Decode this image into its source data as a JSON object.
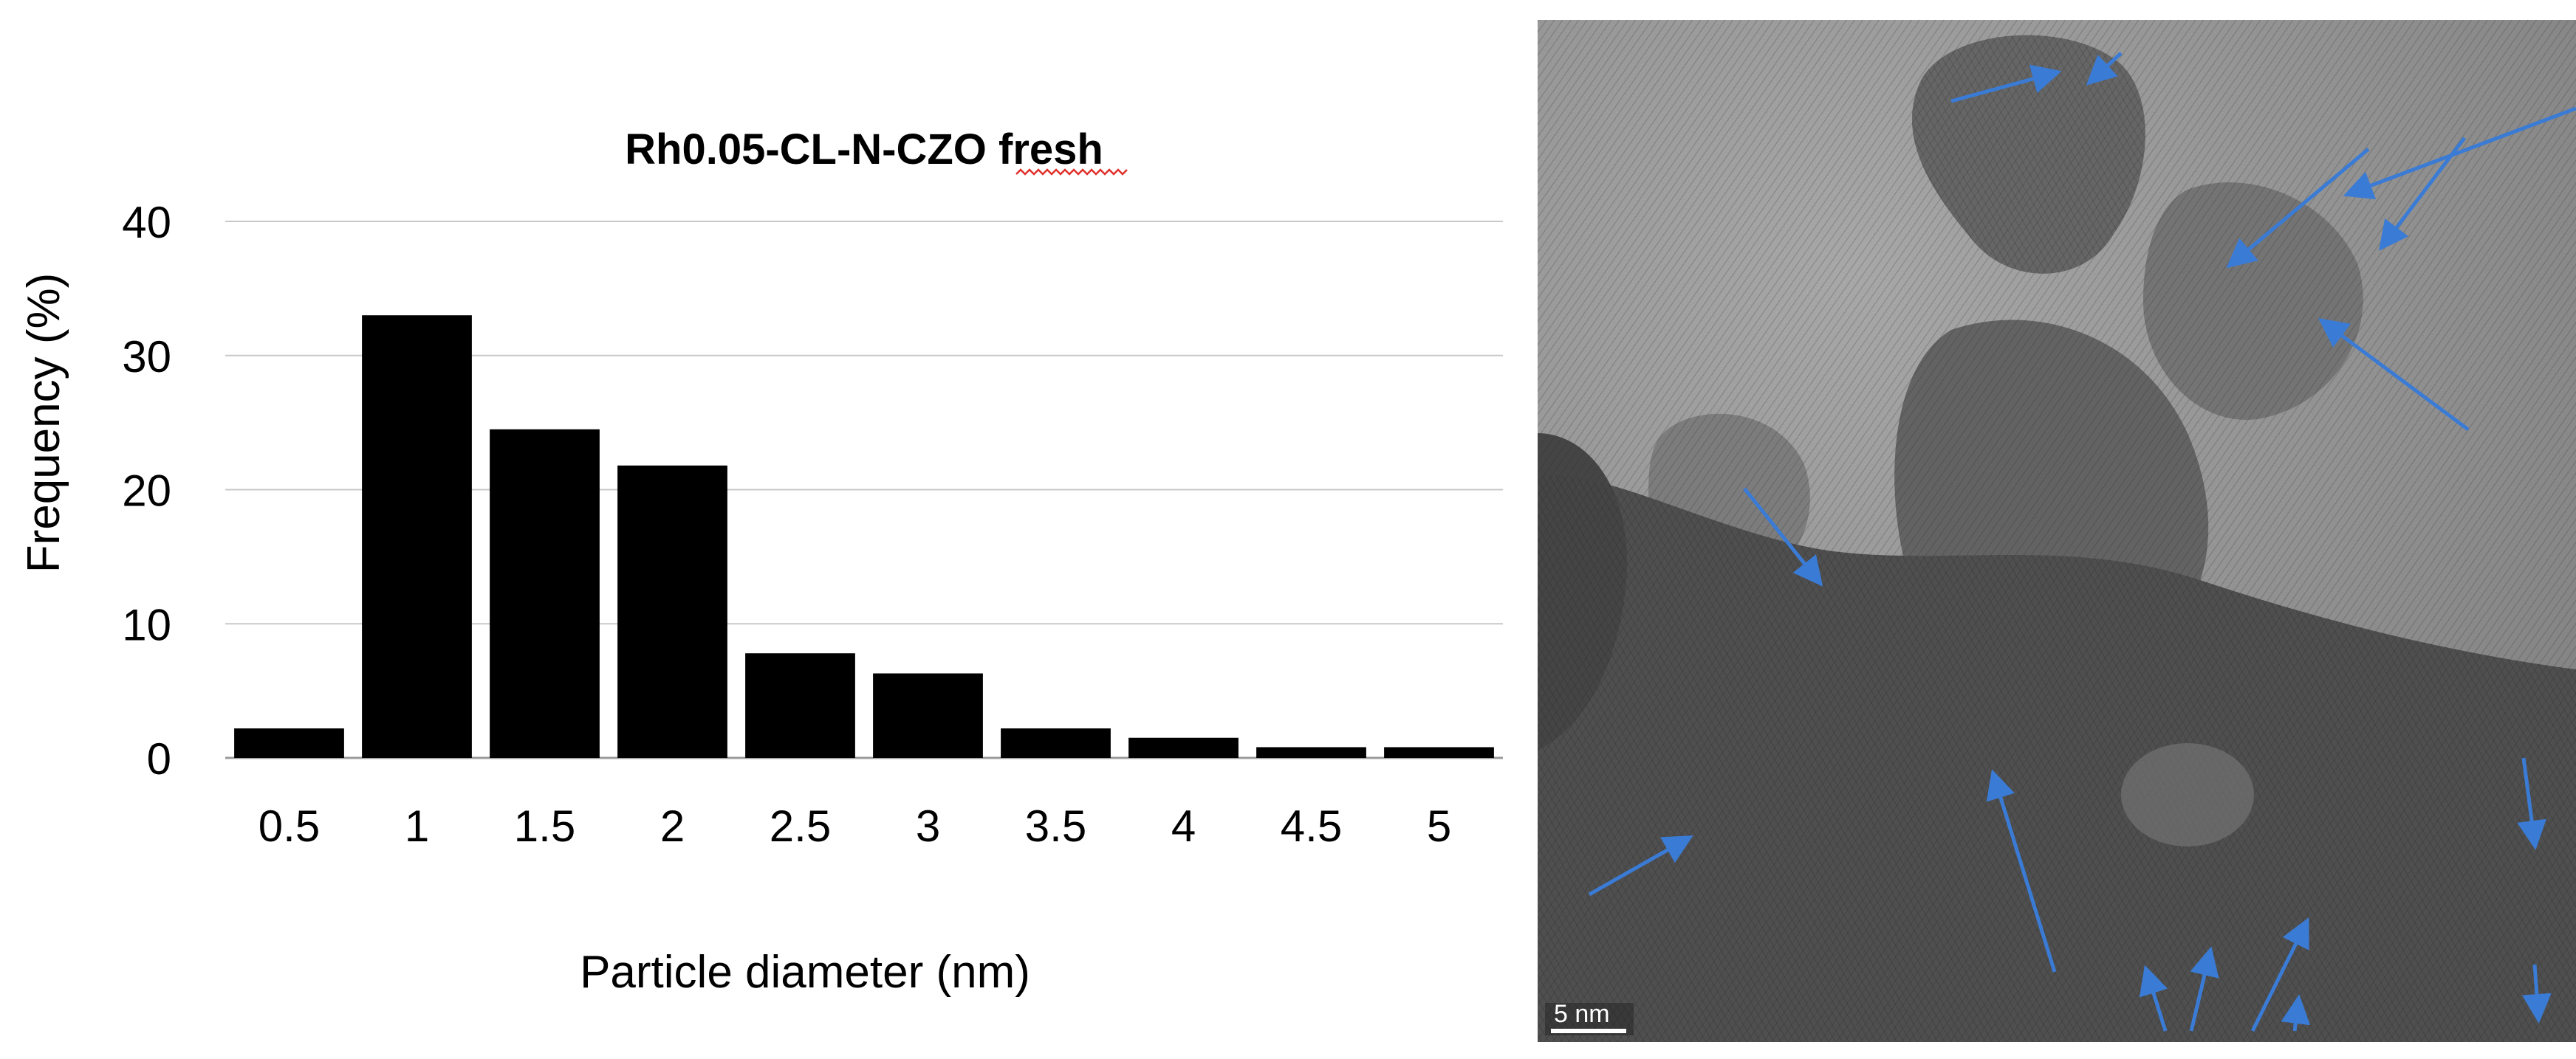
{
  "chart_data": {
    "type": "bar",
    "title": "Rh0.05-CL-N-CZO fresh",
    "xlabel": "Particle diameter (nm)",
    "ylabel": "Frequency (%)",
    "categories": [
      "0.5",
      "1",
      "1.5",
      "2",
      "2.5",
      "3",
      "3.5",
      "4",
      "4.5",
      "5"
    ],
    "values": [
      2.2,
      33.0,
      24.5,
      21.8,
      7.8,
      6.3,
      2.2,
      1.5,
      0.8,
      0.8
    ],
    "ylim": [
      0,
      40
    ],
    "yticks": [
      0,
      10,
      20,
      30,
      40
    ],
    "grid": true,
    "legend": "none",
    "bar_color": "#000000",
    "grid_color": "#c8c8c8"
  },
  "tem_image": {
    "scale_bar_label": "5 nm",
    "arrow_color": "#3a7bd5"
  }
}
